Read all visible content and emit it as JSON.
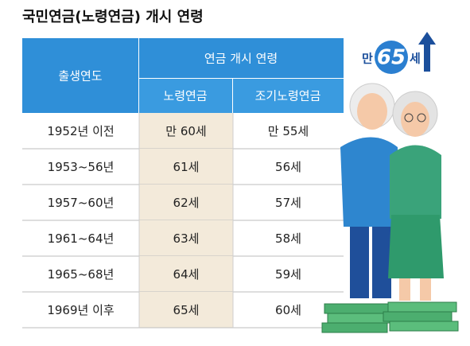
{
  "title": "국민연금(노령연금) 개시 연령",
  "table": {
    "header": {
      "birth_year": "출생연도",
      "group": "연금 개시 연령",
      "columns": [
        "노령연금",
        "조기노령연금"
      ]
    },
    "rows": [
      [
        "1952년 이전",
        "만 60세",
        "만 55세"
      ],
      [
        "1953~56년",
        "61세",
        "56세"
      ],
      [
        "1957~60년",
        "62세",
        "57세"
      ],
      [
        "1961~64년",
        "63세",
        "58세"
      ],
      [
        "1965~68년",
        "64세",
        "59세"
      ],
      [
        "1969년 이후",
        "65세",
        "60세"
      ]
    ]
  },
  "badge": {
    "prefix": "만",
    "number": "65",
    "suffix": "세"
  }
}
